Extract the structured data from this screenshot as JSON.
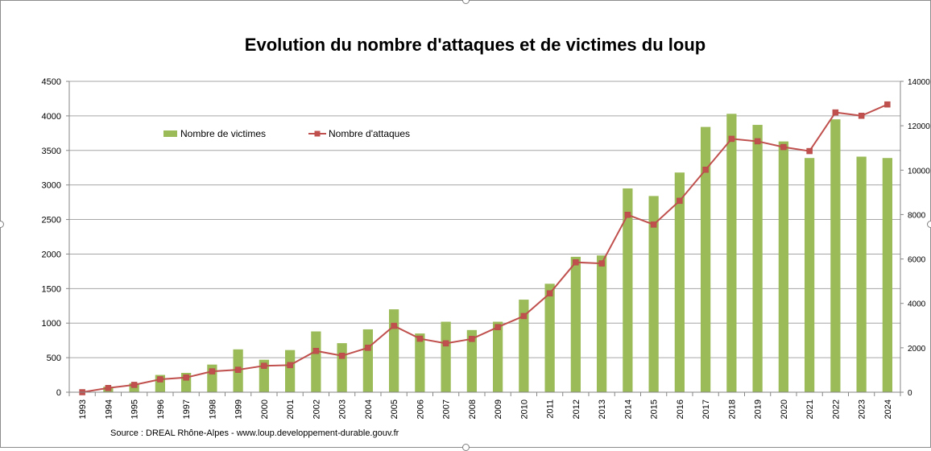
{
  "chart_data": {
    "type": "bar",
    "title": "Evolution du nombre d'attaques et de victimes du loup",
    "source": "Source : DREAL Rhône-Alpes - www.loup.developpement-durable.gouv.fr",
    "categories": [
      "1993",
      "1994",
      "1995",
      "1996",
      "1997",
      "1998",
      "1999",
      "2000",
      "2001",
      "2002",
      "2003",
      "2004",
      "2005",
      "2006",
      "2007",
      "2008",
      "2009",
      "2010",
      "2011",
      "2012",
      "2013",
      "2014",
      "2015",
      "2016",
      "2017",
      "2018",
      "2019",
      "2020",
      "2021",
      "2022",
      "2023",
      "2024"
    ],
    "series": [
      {
        "name": "Nombre de victimes",
        "type": "bar",
        "axis": "left",
        "color": "#9bbb59",
        "values": [
          0,
          80,
          130,
          250,
          280,
          400,
          620,
          470,
          610,
          880,
          710,
          910,
          1200,
          850,
          1020,
          900,
          1020,
          1340,
          1570,
          1960,
          1980,
          2950,
          2840,
          3180,
          3840,
          4030,
          3870,
          3630,
          3390,
          3950,
          3410,
          3390
        ]
      },
      {
        "name": "Nombre d'attaques",
        "type": "line",
        "axis": "right",
        "color": "#c0504d",
        "values": [
          0,
          190,
          330,
          580,
          660,
          940,
          1010,
          1190,
          1220,
          1860,
          1640,
          2000,
          2990,
          2410,
          2200,
          2400,
          2930,
          3430,
          4450,
          5850,
          5800,
          7990,
          7550,
          8620,
          10020,
          11410,
          11300,
          11040,
          10860,
          12600,
          12450,
          12960
        ]
      }
    ],
    "yleft": {
      "lim": [
        0,
        4500
      ],
      "ticks": [
        "0",
        "500",
        "1000",
        "1500",
        "2000",
        "2500",
        "3000",
        "3500",
        "4000",
        "4500"
      ]
    },
    "yright": {
      "lim": [
        0,
        14000
      ],
      "ticks": [
        "0",
        "2000",
        "4000",
        "6000",
        "8000",
        "10000",
        "12000",
        "14000"
      ]
    },
    "grid": true,
    "legend": "top-left"
  }
}
